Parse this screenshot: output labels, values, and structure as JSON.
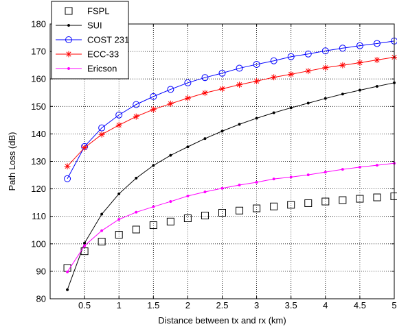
{
  "chart_data": {
    "type": "line",
    "title": "",
    "xlabel": "Distance between tx and rx (km)",
    "ylabel": "Path Loss (dB)",
    "xlim": [
      0,
      5
    ],
    "ylim": [
      80,
      180
    ],
    "xticks": [
      0.5,
      1,
      1.5,
      2,
      2.5,
      3,
      3.5,
      4,
      4.5,
      5
    ],
    "xtick_labels": [
      "0.5",
      "1",
      "1.5",
      "2",
      "2.5",
      "3",
      "3.5",
      "4",
      "4.5",
      "5"
    ],
    "yticks": [
      80,
      90,
      100,
      110,
      120,
      130,
      140,
      150,
      160,
      170,
      180
    ],
    "ytick_labels": [
      "80",
      "90",
      "100",
      "110",
      "120",
      "130",
      "140",
      "150",
      "160",
      "170",
      "180"
    ],
    "grid": true,
    "legend_position": "top-left",
    "x": [
      0.25,
      0.5,
      0.75,
      1,
      1.25,
      1.5,
      1.75,
      2,
      2.25,
      2.5,
      2.75,
      3,
      3.25,
      3.5,
      3.75,
      4,
      4.25,
      4.5,
      4.75,
      5
    ],
    "series": [
      {
        "name": "FSPL",
        "color": "#000000",
        "marker": "square",
        "line": false,
        "values": [
          91.2,
          97.3,
          100.8,
          103.3,
          105.2,
          106.8,
          108.1,
          109.3,
          110.3,
          111.3,
          112.1,
          112.9,
          113.6,
          114.2,
          114.8,
          115.4,
          115.9,
          116.4,
          116.9,
          117.3
        ]
      },
      {
        "name": "SUI",
        "color": "#000000",
        "marker": "dot",
        "line": true,
        "values": [
          83.3,
          100.3,
          110.8,
          118.2,
          123.9,
          128.5,
          132.2,
          135.3,
          138.3,
          141.0,
          143.5,
          145.7,
          147.7,
          149.5,
          151.2,
          152.9,
          154.5,
          155.9,
          157.3,
          158.6
        ]
      },
      {
        "name": "COST 231",
        "color": "#0000ff",
        "marker": "circle",
        "line": true,
        "values": [
          123.7,
          135.4,
          142.2,
          146.9,
          150.7,
          153.6,
          156.2,
          158.6,
          160.5,
          162.1,
          163.9,
          165.3,
          166.6,
          168.1,
          169.1,
          170.2,
          171.2,
          172.1,
          172.9,
          173.8
        ]
      },
      {
        "name": "ECC-33",
        "color": "#ff0000",
        "marker": "star",
        "line": true,
        "values": [
          128.2,
          135.0,
          139.8,
          143.2,
          146.3,
          148.9,
          151.0,
          153.0,
          154.9,
          156.4,
          157.9,
          159.2,
          160.6,
          161.7,
          162.9,
          164.1,
          165.0,
          165.9,
          166.9,
          167.9
        ]
      },
      {
        "name": "Ericson",
        "color": "#ff00ff",
        "marker": "dot",
        "line": true,
        "values": [
          89.8,
          99.3,
          104.8,
          108.9,
          111.5,
          113.5,
          115.4,
          117.4,
          118.9,
          120.2,
          121.4,
          122.4,
          123.6,
          124.3,
          125.1,
          126.1,
          127.1,
          127.9,
          128.6,
          129.3
        ]
      }
    ]
  }
}
